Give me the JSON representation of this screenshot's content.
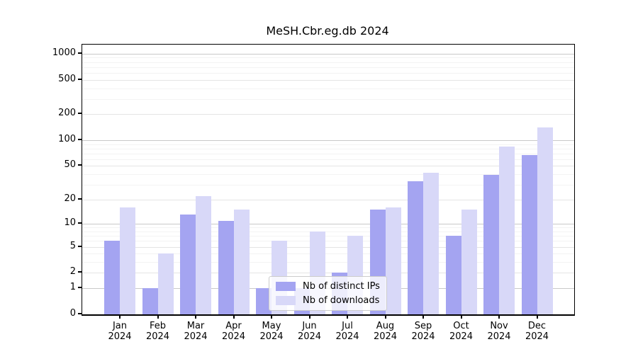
{
  "chart_data": {
    "type": "bar",
    "title": "MeSH.Cbr.eg.db 2024",
    "categories": [
      "Jan 2024",
      "Feb 2024",
      "Mar 2024",
      "Apr 2024",
      "May 2024",
      "Jun 2024",
      "Jul 2024",
      "Aug 2024",
      "Sep 2024",
      "Oct 2024",
      "Nov 2024",
      "Dec 2024"
    ],
    "series": [
      {
        "name": "Nb of distinct IPs",
        "color": "#a4a4f1",
        "values": [
          6,
          1,
          13,
          11,
          1,
          1,
          2,
          15,
          33,
          7,
          39,
          67
        ]
      },
      {
        "name": "Nb of downloads",
        "color": "#d8d8f8",
        "values": [
          16,
          4,
          22,
          15,
          6,
          8,
          7,
          16,
          42,
          15,
          85,
          140
        ]
      }
    ],
    "xlabel": "",
    "ylabel": "",
    "yscale": "log1p",
    "y_ticks": [
      0,
      1,
      2,
      5,
      10,
      20,
      50,
      100,
      200,
      500,
      1000
    ],
    "y_minor_gridlines": [
      3,
      4,
      6,
      7,
      8,
      9,
      30,
      40,
      60,
      70,
      80,
      90,
      300,
      400,
      600,
      700,
      800,
      900
    ],
    "ylim": [
      0,
      1100
    ],
    "grid": true,
    "legend_position": "inside-bottom-center"
  }
}
